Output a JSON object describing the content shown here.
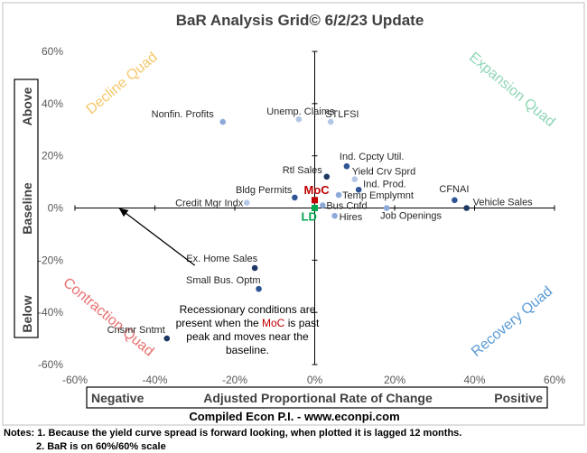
{
  "chart_data": {
    "type": "scatter",
    "title": "BaR Analysis Grid© 6/2/23 Update",
    "xlim": [
      -60,
      60
    ],
    "ylim": [
      -60,
      60
    ],
    "x_ticks": [
      -60,
      -40,
      -20,
      0,
      20,
      40,
      60
    ],
    "y_ticks": [
      -60,
      -40,
      -20,
      0,
      20,
      40,
      60
    ],
    "x_tick_labels": [
      "-60%",
      "-40%",
      "-20%",
      "0%",
      "20%",
      "40%",
      "60%"
    ],
    "y_tick_labels": [
      "-60%",
      "-40%",
      "-20%",
      "0%",
      "20%",
      "40%",
      "60%"
    ],
    "grid": false,
    "x_axis_box": {
      "left": "Negative",
      "center": "Adjusted Proportional Rate of Change",
      "right": "Positive"
    },
    "y_axis_box": {
      "top": "Above",
      "middle": "Baseline",
      "bottom": "Below"
    },
    "quadrants": [
      {
        "name": "Decline Quad",
        "position": "top-left",
        "color": "#f5c76b"
      },
      {
        "name": "Expansion Quad",
        "position": "top-right",
        "color": "#8ed6b4"
      },
      {
        "name": "Contraction Quad",
        "position": "bottom-left",
        "color": "#e87070"
      },
      {
        "name": "Recovery Quad",
        "position": "bottom-right",
        "color": "#5b9bd5"
      }
    ],
    "points": [
      {
        "label": "Nonfin. Profits",
        "x": -23,
        "y": 33,
        "color": "#8eaadb"
      },
      {
        "label": "Unemp. Claims",
        "x": -4,
        "y": 34,
        "color": "#b4c7e7"
      },
      {
        "label": "STLFSI",
        "x": 4,
        "y": 33,
        "color": "#b4c7e7"
      },
      {
        "label": "Ind. Cpcty Util.",
        "x": 8,
        "y": 16,
        "color": "#2f5597"
      },
      {
        "label": "Rtl Sales",
        "x": 3,
        "y": 12,
        "color": "#1f3864"
      },
      {
        "label": "Yield Crv Sprd",
        "x": 10,
        "y": 11,
        "color": "#b4c7e7"
      },
      {
        "label": "Ind. Prod.",
        "x": 11,
        "y": 7,
        "color": "#2f5597"
      },
      {
        "label": "Temp Emplymnt",
        "x": 6,
        "y": 5,
        "color": "#8eaadb"
      },
      {
        "label": "Bldg Permits",
        "x": -5,
        "y": 4,
        "color": "#2f5597"
      },
      {
        "label": "Credit Mgr Indx",
        "x": -17,
        "y": 2,
        "color": "#b4c7e7"
      },
      {
        "label": "Bus Cnfd",
        "x": 2,
        "y": 1,
        "color": "#8eaadb"
      },
      {
        "label": "Hires",
        "x": 5,
        "y": -3,
        "color": "#8eaadb"
      },
      {
        "label": "Job Openings",
        "x": 18,
        "y": 0,
        "color": "#8eaadb"
      },
      {
        "label": "CFNAI",
        "x": 35,
        "y": 3,
        "color": "#2f5597"
      },
      {
        "label": "Vehicle Sales",
        "x": 38,
        "y": 0,
        "color": "#1f3864"
      },
      {
        "label": "Ex. Home Sales",
        "x": -15,
        "y": -23,
        "color": "#1f3864"
      },
      {
        "label": "Small Bus. Optm",
        "x": -14,
        "y": -31,
        "color": "#2f5597"
      },
      {
        "label": "Cnsmr Sntmt",
        "x": -37,
        "y": -50,
        "color": "#1f3864"
      }
    ],
    "markers": [
      {
        "label": "MoC",
        "x": 0,
        "y": 3,
        "color": "#c00000"
      },
      {
        "label": "LD",
        "x": 0,
        "y": 0,
        "color": "#00a650"
      }
    ],
    "annotation": {
      "lines": [
        "Recessionary conditions are",
        "present when the MoC is past",
        "peak and moves near the",
        "baseline."
      ],
      "highlight": "MoC",
      "highlight_color": "#c00000",
      "arrow_from": [
        -30,
        -22
      ],
      "arrow_to": [
        -49,
        0
      ]
    }
  },
  "credit": "Compiled Econ P.I. - www.econpi.com",
  "notes": [
    "Notes: 1. Because the yield curve spread is forward looking, when plotted it is lagged 12 months.",
    "2. BaR is on 60%/60% scale"
  ]
}
